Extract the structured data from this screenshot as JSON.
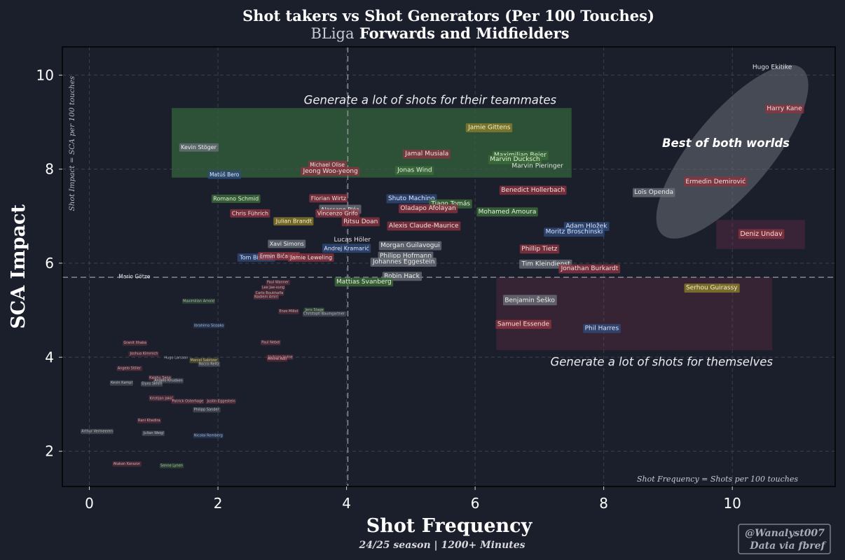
{
  "chart_data": {
    "type": "scatter",
    "title": "Shot takers vs Shot Generators (Per 100 Touches)",
    "subtitle_prefix": "BLiga",
    "subtitle_rest": " Forwards and Midfielders",
    "xlabel": "Shot Frequency",
    "ylabel": "SCA Impact",
    "season_note": "24/25 season | 1200+ Minutes",
    "x_def_note": "Shot Frequency = Shots per 100 touches",
    "y_def_note": "Shot Impact = SCA per 100 touches",
    "credit_line1": "@Wanalyst007",
    "credit_line2": "Data via fbref",
    "xlim": [
      -0.42,
      11.6
    ],
    "ylim": [
      1.25,
      10.6
    ],
    "x_ticks": [
      0,
      2,
      4,
      6,
      8,
      10
    ],
    "y_ticks": [
      2,
      4,
      6,
      8,
      10
    ],
    "x_tick_labels": [
      "0",
      "2",
      "4",
      "6",
      "8",
      "10"
    ],
    "y_tick_labels": [
      "2",
      "4",
      "6",
      "8",
      "10"
    ],
    "grid": true,
    "median_x": 4.02,
    "median_y": 5.7,
    "colors": {
      "background": "#1b1f2c",
      "red": "#8a3540",
      "green": "#3c6b3a",
      "yellow": "#8a7c2a",
      "gray": "#6a6f78",
      "blue": "#2e4a7a",
      "tag_text": "#e6e6e6"
    },
    "annotations": [
      {
        "text": "Generate a lot of shots for their teammates",
        "x": 5.3,
        "y": 9.47
      },
      {
        "text": "Best of both worlds",
        "x": 9.9,
        "y": 8.55
      },
      {
        "text": "Generate a lot of shots for themselves",
        "x": 8.9,
        "y": 3.9
      }
    ],
    "zones": [
      {
        "name": "teammates",
        "x0": 1.28,
        "x1": 7.5,
        "y0": 7.82,
        "y1": 9.3,
        "color": "#2f5a3a"
      },
      {
        "name": "themselves",
        "x0": 6.33,
        "x1": 10.62,
        "y0": 4.15,
        "y1": 5.7,
        "color": "#3a2536"
      },
      {
        "name": "undav",
        "x0": 9.75,
        "x1": 11.13,
        "y0": 6.3,
        "y1": 6.92,
        "color": "#3d2438"
      }
    ],
    "points": [
      {
        "name": "Hugo Ekitike",
        "x": 10.62,
        "y": 10.16,
        "c": "none",
        "s": 9
      },
      {
        "name": "Harry Kane",
        "x": 10.81,
        "y": 9.28,
        "c": "red",
        "s": 9
      },
      {
        "name": "Ermedin Demirović",
        "x": 9.74,
        "y": 7.73,
        "c": "red",
        "s": 9
      },
      {
        "name": "Loïs Openda",
        "x": 8.78,
        "y": 7.5,
        "c": "gray",
        "s": 9
      },
      {
        "name": "Deniz Undav",
        "x": 10.45,
        "y": 6.62,
        "c": "red",
        "s": 9.5
      },
      {
        "name": "Serhou Guirassy",
        "x": 9.68,
        "y": 5.47,
        "c": "yellow",
        "s": 9
      },
      {
        "name": "Jamie Gittens",
        "x": 6.22,
        "y": 8.88,
        "c": "yellow",
        "s": 9
      },
      {
        "name": "Maximilian Beier",
        "x": 6.7,
        "y": 8.29,
        "c": "green",
        "s": 9
      },
      {
        "name": "Marvin Ducksch",
        "x": 6.62,
        "y": 8.2,
        "c": "green",
        "s": 9
      },
      {
        "name": "Marvin Pieringer",
        "x": 6.97,
        "y": 8.06,
        "c": "none",
        "s": 9
      },
      {
        "name": "Jamal Musiala",
        "x": 5.25,
        "y": 8.32,
        "c": "red",
        "s": 9
      },
      {
        "name": "Jonas Wind",
        "x": 5.06,
        "y": 7.97,
        "c": "green",
        "s": 9
      },
      {
        "name": "Michael Olise",
        "x": 3.7,
        "y": 8.09,
        "c": "red",
        "s": 7.5
      },
      {
        "name": "Jeong Woo-yeong",
        "x": 3.75,
        "y": 7.95,
        "c": "red",
        "s": 9
      },
      {
        "name": "Kevin Stöger",
        "x": 1.7,
        "y": 8.46,
        "c": "gray",
        "s": 8
      },
      {
        "name": "Matúš Bero",
        "x": 2.1,
        "y": 7.88,
        "c": "blue",
        "s": 7.5
      },
      {
        "name": "Benedict Hollerbach",
        "x": 6.9,
        "y": 7.55,
        "c": "red",
        "s": 9
      },
      {
        "name": "Mohamed Amoura",
        "x": 6.5,
        "y": 7.09,
        "c": "green",
        "s": 9
      },
      {
        "name": "Shuto Machino",
        "x": 5.01,
        "y": 7.37,
        "c": "blue",
        "s": 9
      },
      {
        "name": "Tiago Tomás",
        "x": 5.62,
        "y": 7.26,
        "c": "green",
        "s": 9
      },
      {
        "name": "Oladapo Afolayan",
        "x": 5.27,
        "y": 7.16,
        "c": "red",
        "s": 9
      },
      {
        "name": "Florian Wirtz",
        "x": 3.72,
        "y": 7.38,
        "c": "red",
        "s": 8
      },
      {
        "name": "Romano Schmid",
        "x": 2.28,
        "y": 7.37,
        "c": "green",
        "s": 8
      },
      {
        "name": "Chris Führich",
        "x": 2.5,
        "y": 7.06,
        "c": "red",
        "s": 8
      },
      {
        "name": "Alassane Pléa",
        "x": 3.9,
        "y": 7.14,
        "c": "gray",
        "s": 8
      },
      {
        "name": "Vincenzo Grifo",
        "x": 3.86,
        "y": 7.06,
        "c": "red",
        "s": 8
      },
      {
        "name": "Julian Brandt",
        "x": 3.18,
        "y": 6.89,
        "c": "yellow",
        "s": 8
      },
      {
        "name": "Ritsu Doan",
        "x": 4.22,
        "y": 6.88,
        "c": "red",
        "s": 9
      },
      {
        "name": "Alexis Claude-Maurice",
        "x": 5.2,
        "y": 6.79,
        "c": "red",
        "s": 9
      },
      {
        "name": "Adam Hložek",
        "x": 7.73,
        "y": 6.78,
        "c": "blue",
        "s": 9
      },
      {
        "name": "Moritz Broschinski",
        "x": 7.54,
        "y": 6.66,
        "c": "blue",
        "s": 9
      },
      {
        "name": "Xavi Simons",
        "x": 3.07,
        "y": 6.41,
        "c": "gray",
        "s": 8
      },
      {
        "name": "Lucas Höler",
        "x": 4.09,
        "y": 6.49,
        "c": "none",
        "s": 9
      },
      {
        "name": "Andrej Kramarić",
        "x": 4.0,
        "y": 6.31,
        "c": "blue",
        "s": 8
      },
      {
        "name": "Morgan Guilavogui",
        "x": 4.99,
        "y": 6.37,
        "c": "gray",
        "s": 9
      },
      {
        "name": "Phillip Tietz",
        "x": 7.0,
        "y": 6.3,
        "c": "red",
        "s": 9
      },
      {
        "name": "Philipp Hofmann",
        "x": 4.92,
        "y": 6.15,
        "c": "gray",
        "s": 9
      },
      {
        "name": "Tom Bischof",
        "x": 2.6,
        "y": 6.12,
        "c": "blue",
        "s": 8
      },
      {
        "name": "Ermin Bičakčić",
        "x": 2.95,
        "y": 6.15,
        "c": "red",
        "s": 7.5
      },
      {
        "name": "Jamie Leweling",
        "x": 3.45,
        "y": 6.12,
        "c": "red",
        "s": 8
      },
      {
        "name": "Johannes Eggestein",
        "x": 4.89,
        "y": 6.02,
        "c": "gray",
        "s": 9
      },
      {
        "name": "Tim Kleindienst",
        "x": 7.1,
        "y": 5.98,
        "c": "gray",
        "s": 9
      },
      {
        "name": "Jonathan Burkardt",
        "x": 7.78,
        "y": 5.88,
        "c": "red",
        "s": 9
      },
      {
        "name": "Mario Götze",
        "x": 0.7,
        "y": 5.72,
        "c": "none",
        "s": 7.5
      },
      {
        "name": "Robin Hack",
        "x": 4.86,
        "y": 5.72,
        "c": "gray",
        "s": 9
      },
      {
        "name": "Mattias Svanberg",
        "x": 4.27,
        "y": 5.6,
        "c": "green",
        "s": 9
      },
      {
        "name": "Benjamin Šeško",
        "x": 6.85,
        "y": 5.2,
        "c": "gray",
        "s": 9
      },
      {
        "name": "Samuel Essende",
        "x": 6.75,
        "y": 4.7,
        "c": "red",
        "s": 9
      },
      {
        "name": "Phil Harres",
        "x": 7.97,
        "y": 4.61,
        "c": "blue",
        "s": 9
      },
      {
        "name": "Paul Wanner",
        "x": 2.93,
        "y": 5.59,
        "c": "red",
        "s": 5
      },
      {
        "name": "Lee Jae-sung",
        "x": 2.86,
        "y": 5.48,
        "c": "red",
        "s": 5
      },
      {
        "name": "Carlo Boukhalfa",
        "x": 2.8,
        "y": 5.36,
        "c": "red",
        "s": 5
      },
      {
        "name": "Nadiem Amiri",
        "x": 2.75,
        "y": 5.28,
        "c": "red",
        "s": 5
      },
      {
        "name": "Maximilian Arnold",
        "x": 1.7,
        "y": 5.19,
        "c": "green",
        "s": 5
      },
      {
        "name": "Enzo Millot",
        "x": 3.1,
        "y": 4.97,
        "c": "red",
        "s": 5
      },
      {
        "name": "Jens Stage",
        "x": 3.5,
        "y": 5.0,
        "c": "green",
        "s": 5
      },
      {
        "name": "Christoph Baumgartner",
        "x": 3.65,
        "y": 4.92,
        "c": "gray",
        "s": 5
      },
      {
        "name": "Ibrahima Sissoko",
        "x": 1.86,
        "y": 4.67,
        "c": "blue",
        "s": 5
      },
      {
        "name": "Granit Xhaka",
        "x": 0.71,
        "y": 4.3,
        "c": "red",
        "s": 5
      },
      {
        "name": "Paul Nebel",
        "x": 2.82,
        "y": 4.31,
        "c": "red",
        "s": 5
      },
      {
        "name": "Joshua Kimmich",
        "x": 0.85,
        "y": 4.07,
        "c": "red",
        "s": 5
      },
      {
        "name": "Hugo Larsson",
        "x": 1.35,
        "y": 3.98,
        "c": "none",
        "s": 5
      },
      {
        "name": "Marcel Sabitzer",
        "x": 1.78,
        "y": 3.93,
        "c": "yellow",
        "s": 5
      },
      {
        "name": "Rocco Reitz",
        "x": 1.86,
        "y": 3.85,
        "c": "gray",
        "s": 5
      },
      {
        "name": "Jackson Irvine",
        "x": 2.97,
        "y": 4.0,
        "c": "red",
        "s": 5
      },
      {
        "name": "Amine Adli",
        "x": 2.92,
        "y": 3.96,
        "c": "red",
        "s": 5
      },
      {
        "name": "Angelo Stiller",
        "x": 0.62,
        "y": 3.76,
        "c": "red",
        "s": 5
      },
      {
        "name": "Kaishu Sano",
        "x": 1.1,
        "y": 3.56,
        "c": "red",
        "s": 5
      },
      {
        "name": "Angelo Knudsen",
        "x": 1.23,
        "y": 3.5,
        "c": "gray",
        "s": 5
      },
      {
        "name": "Kevin Kampl",
        "x": 0.5,
        "y": 3.45,
        "c": "gray",
        "s": 5
      },
      {
        "name": "Elyes Skhiri",
        "x": 0.97,
        "y": 3.43,
        "c": "gray",
        "s": 5
      },
      {
        "name": "Kristijan Jakić",
        "x": 1.12,
        "y": 3.12,
        "c": "red",
        "s": 5
      },
      {
        "name": "Patrick Osterhage",
        "x": 1.53,
        "y": 3.06,
        "c": "red",
        "s": 5
      },
      {
        "name": "Justin Eggestein",
        "x": 2.05,
        "y": 3.06,
        "c": "red",
        "s": 5
      },
      {
        "name": "Philipp Sander",
        "x": 1.82,
        "y": 2.88,
        "c": "gray",
        "s": 5
      },
      {
        "name": "Rani Khedira",
        "x": 0.93,
        "y": 2.65,
        "c": "red",
        "s": 5
      },
      {
        "name": "Arthur Vermeeren",
        "x": 0.12,
        "y": 2.42,
        "c": "gray",
        "s": 5
      },
      {
        "name": "Julian Weigl",
        "x": 1.0,
        "y": 2.38,
        "c": "gray",
        "s": 5
      },
      {
        "name": "Nicolai Remberg",
        "x": 1.85,
        "y": 2.33,
        "c": "blue",
        "s": 5
      },
      {
        "name": "Atakan Karazor",
        "x": 0.58,
        "y": 1.73,
        "c": "red",
        "s": 5
      },
      {
        "name": "Senne Lynen",
        "x": 1.28,
        "y": 1.69,
        "c": "green",
        "s": 5
      }
    ]
  }
}
